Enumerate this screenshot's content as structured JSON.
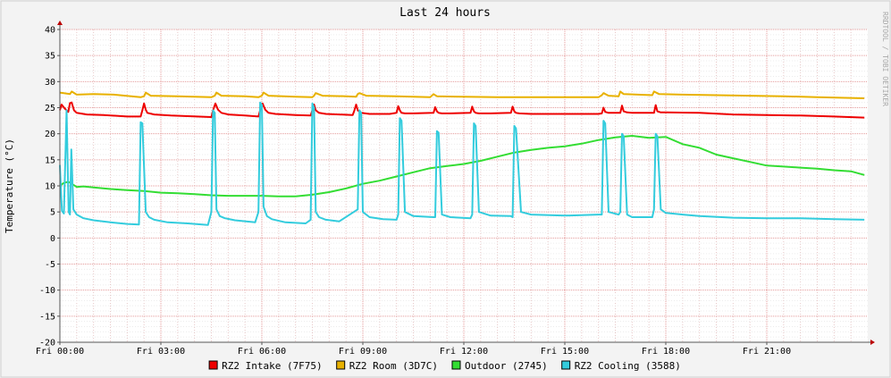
{
  "chart_data": {
    "type": "line",
    "title": "Last 24 hours",
    "ylabel": "Temperature (°C)",
    "xlabel": "",
    "watermark": "RRDTOOL / TOBI OETIKER",
    "ylim": [
      -20,
      40
    ],
    "yticks": [
      -20,
      -15,
      -10,
      -5,
      0,
      5,
      10,
      15,
      20,
      25,
      30,
      35,
      40
    ],
    "xlim": [
      0,
      24
    ],
    "xtick_values": [
      0,
      3,
      6,
      9,
      12,
      15,
      18,
      21
    ],
    "xtick_labels": [
      "Fri 00:00",
      "Fri 03:00",
      "Fri 06:00",
      "Fri 09:00",
      "Fri 12:00",
      "Fri 15:00",
      "Fri 18:00",
      "Fri 21:00"
    ],
    "grid": true,
    "legend_position": "bottom",
    "series": [
      {
        "name": "RZ2 Intake (7F75)",
        "color": "#ee0000",
        "x": [
          0.0,
          0.05,
          0.15,
          0.25,
          0.3,
          0.35,
          0.42,
          0.5,
          0.8,
          1.3,
          2.0,
          2.4,
          2.45,
          2.5,
          2.55,
          2.6,
          2.8,
          3.3,
          4.5,
          4.55,
          4.62,
          4.7,
          4.8,
          5.0,
          5.5,
          5.9,
          5.95,
          6.02,
          6.1,
          6.2,
          6.4,
          7.0,
          7.45,
          7.5,
          7.55,
          7.6,
          7.7,
          7.9,
          8.3,
          8.7,
          8.75,
          8.8,
          8.85,
          8.95,
          9.2,
          9.8,
          10.0,
          10.05,
          10.1,
          10.15,
          10.25,
          10.5,
          11.1,
          11.15,
          11.2,
          11.25,
          11.35,
          11.6,
          12.2,
          12.25,
          12.3,
          12.35,
          12.45,
          12.8,
          13.4,
          13.45,
          13.5,
          13.55,
          13.65,
          14.0,
          15.0,
          16.0,
          16.1,
          16.15,
          16.2,
          16.3,
          16.6,
          16.65,
          16.7,
          16.75,
          16.85,
          17.0,
          17.6,
          17.65,
          17.7,
          17.75,
          17.85,
          18.0,
          19.0,
          20.0,
          21.0,
          22.0,
          23.0,
          23.9
        ],
        "values": [
          24.5,
          25.6,
          24.8,
          24.2,
          25.9,
          26.0,
          24.5,
          24.0,
          23.7,
          23.6,
          23.3,
          23.3,
          24.5,
          25.8,
          24.6,
          24.0,
          23.7,
          23.5,
          23.2,
          24.5,
          25.8,
          24.6,
          24.0,
          23.7,
          23.5,
          23.3,
          24.5,
          25.8,
          24.6,
          24.0,
          23.8,
          23.6,
          23.5,
          24.5,
          25.6,
          24.5,
          24.0,
          23.8,
          23.7,
          23.6,
          24.5,
          25.6,
          24.5,
          24.0,
          23.8,
          23.8,
          24.0,
          25.3,
          24.5,
          24.0,
          23.9,
          23.9,
          24.0,
          25.1,
          24.3,
          24.0,
          23.9,
          23.9,
          24.0,
          25.2,
          24.3,
          24.0,
          23.9,
          23.9,
          24.0,
          25.2,
          24.3,
          24.0,
          23.9,
          23.8,
          23.8,
          23.8,
          23.9,
          25.0,
          24.2,
          24.0,
          24.0,
          24.0,
          25.4,
          24.3,
          24.1,
          24.0,
          24.0,
          24.0,
          25.5,
          24.3,
          24.1,
          24.1,
          24.0,
          23.7,
          23.6,
          23.5,
          23.3,
          23.1
        ]
      },
      {
        "name": "RZ2 Room (3D7C)",
        "color": "#e8b100",
        "x": [
          0.0,
          0.3,
          0.35,
          0.5,
          1.0,
          1.6,
          2.4,
          2.5,
          2.55,
          2.7,
          3.5,
          4.5,
          4.6,
          4.65,
          4.8,
          5.5,
          5.9,
          6.0,
          6.05,
          6.2,
          7.0,
          7.5,
          7.55,
          7.6,
          7.8,
          8.5,
          8.8,
          8.85,
          8.9,
          9.1,
          10.0,
          11.0,
          11.1,
          11.2,
          12.0,
          13.0,
          14.0,
          15.0,
          16.0,
          16.1,
          16.15,
          16.3,
          16.6,
          16.65,
          16.75,
          17.6,
          17.65,
          17.8,
          18.5,
          19.5,
          20.5,
          21.5,
          22.5,
          23.9
        ],
        "values": [
          27.9,
          27.6,
          28.1,
          27.5,
          27.6,
          27.5,
          27.0,
          27.2,
          27.9,
          27.3,
          27.2,
          27.0,
          27.3,
          27.9,
          27.3,
          27.2,
          27.0,
          27.3,
          27.9,
          27.3,
          27.1,
          27.0,
          27.3,
          27.8,
          27.3,
          27.2,
          27.1,
          27.6,
          27.8,
          27.3,
          27.2,
          27.0,
          27.6,
          27.2,
          27.1,
          27.0,
          27.0,
          27.0,
          27.0,
          27.4,
          27.8,
          27.3,
          27.2,
          28.1,
          27.6,
          27.4,
          28.1,
          27.6,
          27.5,
          27.4,
          27.3,
          27.2,
          27.0,
          26.8
        ]
      },
      {
        "name": "Outdoor (2745)",
        "color": "#33dd33",
        "x": [
          0.0,
          0.1,
          0.25,
          0.4,
          0.5,
          0.7,
          1.0,
          1.5,
          2.0,
          2.5,
          3.0,
          3.5,
          4.0,
          4.5,
          5.0,
          5.5,
          6.0,
          6.5,
          7.0,
          7.5,
          8.0,
          8.5,
          9.0,
          9.5,
          10.0,
          10.5,
          11.0,
          11.5,
          12.0,
          12.5,
          13.0,
          13.5,
          14.0,
          14.5,
          15.0,
          15.5,
          16.0,
          16.5,
          17.0,
          17.5,
          18.0,
          18.5,
          19.0,
          19.5,
          20.0,
          20.5,
          21.0,
          21.5,
          22.0,
          22.5,
          23.0,
          23.5,
          23.9
        ],
        "values": [
          10.0,
          10.5,
          10.8,
          10.2,
          9.8,
          9.9,
          9.7,
          9.4,
          9.2,
          9.0,
          8.7,
          8.6,
          8.4,
          8.2,
          8.1,
          8.1,
          8.1,
          8.0,
          8.0,
          8.3,
          8.8,
          9.5,
          10.4,
          11.0,
          11.8,
          12.6,
          13.4,
          13.8,
          14.2,
          14.8,
          15.6,
          16.4,
          16.9,
          17.3,
          17.6,
          18.1,
          18.8,
          19.3,
          19.6,
          19.2,
          19.4,
          18.0,
          17.3,
          16.0,
          15.3,
          14.6,
          13.9,
          13.7,
          13.5,
          13.3,
          13.0,
          12.8,
          12.1
        ]
      },
      {
        "name": "RZ2 Cooling (3588)",
        "color": "#33ccdd",
        "x": [
          0.0,
          0.04,
          0.06,
          0.12,
          0.2,
          0.26,
          0.3,
          0.34,
          0.4,
          0.5,
          0.7,
          1.0,
          1.5,
          2.0,
          2.35,
          2.4,
          2.45,
          2.55,
          2.65,
          2.8,
          3.2,
          3.8,
          4.4,
          4.5,
          4.55,
          4.6,
          4.65,
          4.75,
          4.9,
          5.2,
          5.8,
          5.9,
          5.95,
          6.0,
          6.05,
          6.15,
          6.3,
          6.7,
          7.3,
          7.45,
          7.5,
          7.55,
          7.6,
          7.7,
          7.9,
          8.3,
          8.85,
          8.9,
          8.95,
          9.0,
          9.2,
          9.6,
          10.0,
          10.05,
          10.1,
          10.15,
          10.25,
          10.5,
          11.1,
          11.15,
          11.2,
          11.25,
          11.35,
          11.6,
          12.2,
          12.25,
          12.3,
          12.35,
          12.45,
          12.8,
          13.4,
          13.45,
          13.5,
          13.55,
          13.7,
          14.0,
          15.0,
          16.0,
          16.1,
          16.15,
          16.2,
          16.3,
          16.6,
          16.65,
          16.7,
          16.75,
          16.85,
          17.0,
          17.6,
          17.65,
          17.7,
          17.75,
          17.85,
          18.0,
          18.5,
          19.0,
          20.0,
          21.0,
          22.0,
          23.0,
          23.9
        ],
        "values": [
          14.0,
          8.0,
          5.2,
          4.7,
          24.5,
          5.0,
          4.5,
          17.0,
          5.5,
          4.5,
          3.8,
          3.4,
          3.0,
          2.7,
          2.6,
          22.2,
          22.0,
          5.0,
          4.0,
          3.5,
          3.0,
          2.8,
          2.5,
          5.0,
          24.5,
          24.0,
          5.5,
          4.2,
          3.8,
          3.4,
          3.0,
          5.0,
          26.0,
          25.5,
          6.0,
          4.2,
          3.6,
          3.0,
          2.8,
          3.5,
          25.8,
          25.0,
          5.0,
          4.0,
          3.5,
          3.2,
          5.5,
          24.5,
          24.0,
          5.0,
          4.0,
          3.6,
          3.5,
          4.5,
          23.0,
          22.5,
          5.0,
          4.2,
          4.0,
          4.0,
          20.5,
          20.2,
          4.5,
          4.0,
          3.8,
          4.5,
          22.0,
          21.5,
          5.0,
          4.3,
          4.2,
          4.0,
          21.5,
          21.0,
          5.0,
          4.5,
          4.3,
          4.5,
          4.5,
          22.5,
          22.0,
          5.0,
          4.5,
          5.0,
          20.0,
          19.5,
          4.5,
          4.0,
          4.0,
          5.5,
          20.0,
          19.5,
          5.5,
          4.8,
          4.5,
          4.2,
          3.9,
          3.8,
          3.8,
          3.6,
          3.5
        ]
      }
    ]
  }
}
